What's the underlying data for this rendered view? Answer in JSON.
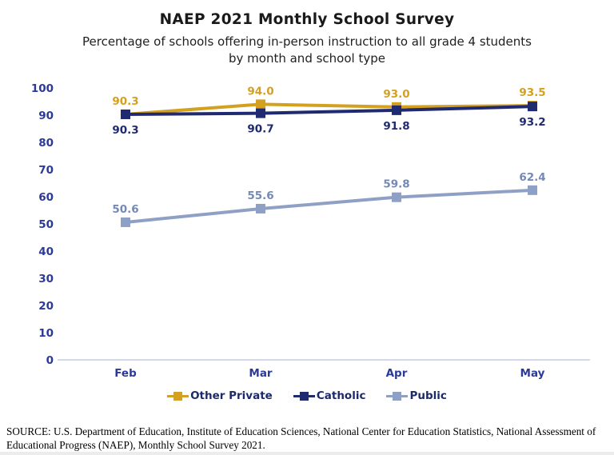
{
  "chart_data": {
    "type": "line",
    "title": "NAEP 2021 Monthly School Survey",
    "subtitle_line1": "Percentage of schools offering in-person instruction to all grade 4 students",
    "subtitle_line2": "by month and school type",
    "categories": [
      "Feb",
      "Mar",
      "Apr",
      "May"
    ],
    "series": [
      {
        "name": "Other Private",
        "values": [
          90.3,
          94.0,
          93.0,
          93.5
        ],
        "color": "#D4A020",
        "label_color": "#D4A020",
        "label_position": "above"
      },
      {
        "name": "Catholic",
        "values": [
          90.3,
          90.7,
          91.8,
          93.2
        ],
        "color": "#1F2A70",
        "label_color": "#1F2A70",
        "label_position": "below"
      },
      {
        "name": "Public",
        "values": [
          50.6,
          55.6,
          59.8,
          62.4
        ],
        "color": "#8FA0C6",
        "label_color": "#7489B6",
        "label_position": "above"
      }
    ],
    "ylim": [
      0,
      100
    ],
    "ytick_step": 10,
    "grid": false,
    "legend_position": "bottom",
    "marker": "square",
    "xlabel": "",
    "ylabel": "",
    "colors": {
      "axis_tick_label": "#2B3A97",
      "axis_line": "#C3CCE8",
      "legend_text": "#1B2A68",
      "title_text": "#1A1A1A"
    }
  },
  "footer": {
    "source": "SOURCE: U.S. Department of Education, Institute of Education Sciences, National Center for Education Statistics, National Assessment of Educational Progress (NAEP), Monthly School Survey 2021."
  }
}
